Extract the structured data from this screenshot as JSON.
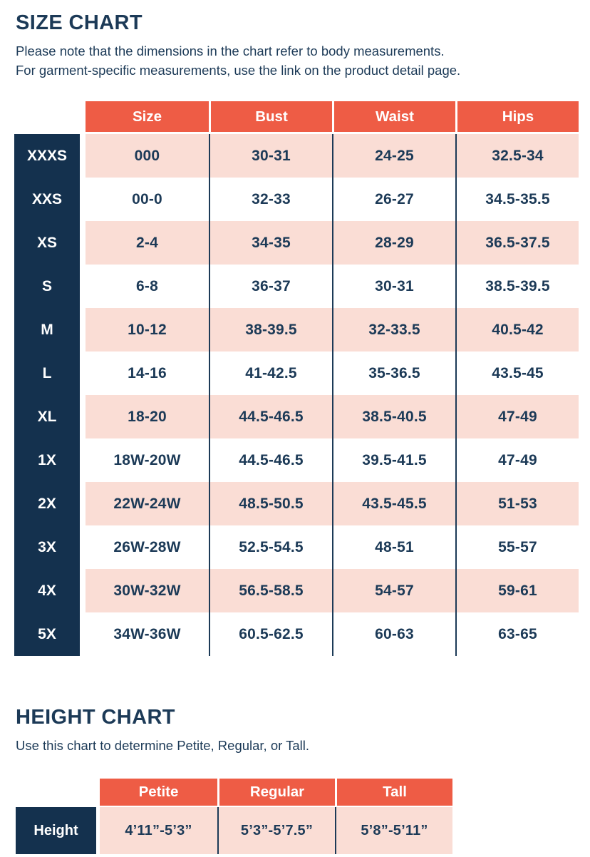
{
  "chart_data": [
    {
      "type": "table",
      "title": "SIZE CHART",
      "subtitle_lines": [
        "Please note that the dimensions in the chart refer to body measurements.",
        "For garment-specific measurements, use the link on the product detail page."
      ],
      "columns": [
        "Size",
        "Bust",
        "Waist",
        "Hips"
      ],
      "row_labels": [
        "XXXS",
        "XXS",
        "XS",
        "S",
        "M",
        "L",
        "XL",
        "1X",
        "2X",
        "3X",
        "4X",
        "5X"
      ],
      "rows": [
        [
          "000",
          "30-31",
          "24-25",
          "32.5-34"
        ],
        [
          "00-0",
          "32-33",
          "26-27",
          "34.5-35.5"
        ],
        [
          "2-4",
          "34-35",
          "28-29",
          "36.5-37.5"
        ],
        [
          "6-8",
          "36-37",
          "30-31",
          "38.5-39.5"
        ],
        [
          "10-12",
          "38-39.5",
          "32-33.5",
          "40.5-42"
        ],
        [
          "14-16",
          "41-42.5",
          "35-36.5",
          "43.5-45"
        ],
        [
          "18-20",
          "44.5-46.5",
          "38.5-40.5",
          "47-49"
        ],
        [
          "18W-20W",
          "44.5-46.5",
          "39.5-41.5",
          "47-49"
        ],
        [
          "22W-24W",
          "48.5-50.5",
          "43.5-45.5",
          "51-53"
        ],
        [
          "26W-28W",
          "52.5-54.5",
          "48-51",
          "55-57"
        ],
        [
          "30W-32W",
          "56.5-58.5",
          "54-57",
          "59-61"
        ],
        [
          "34W-36W",
          "60.5-62.5",
          "60-63",
          "63-65"
        ]
      ]
    },
    {
      "type": "table",
      "title": "HEIGHT CHART",
      "subtitle_lines": [
        "Use this chart to determine Petite, Regular, or Tall."
      ],
      "columns": [
        "Petite",
        "Regular",
        "Tall"
      ],
      "row_labels": [
        "Height"
      ],
      "rows": [
        [
          "4’11”-5’3”",
          "5’3”-5’7.5”",
          "5’8”-5’11”"
        ]
      ]
    }
  ],
  "colors": {
    "header_orange": "#EE5C45",
    "row_pink": "#FADDD5",
    "label_navy": "#14314E",
    "text_navy": "#1C3A57"
  }
}
